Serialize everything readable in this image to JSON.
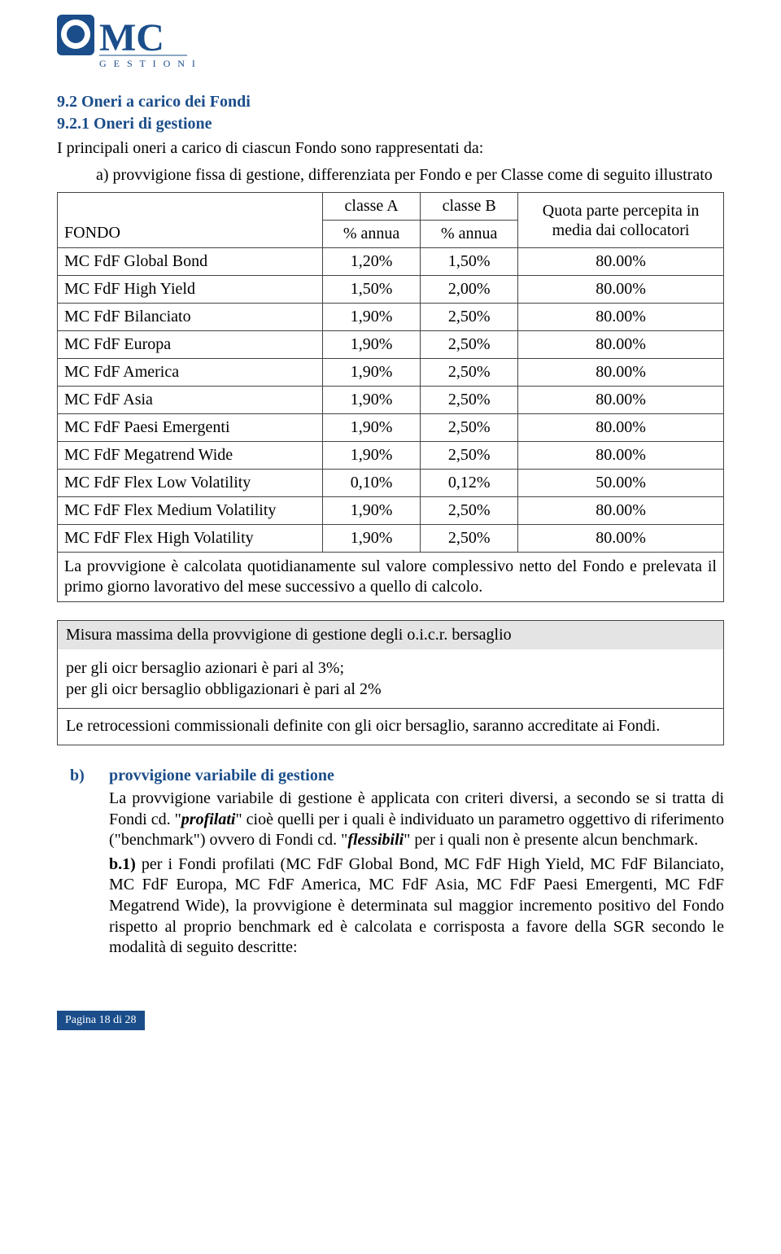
{
  "logo": {
    "brand_top": "MC",
    "brand_sub": "G E S T I O N I",
    "brand_color": "#1a4d8a"
  },
  "h1": "9.2 Oneri a carico dei Fondi",
  "h2": "9.2.1 Oneri di gestione",
  "intro_line1": "I principali oneri a carico di ciascun Fondo sono rappresentati da:",
  "intro_a": "a) provvigione fissa di gestione, differenziata per Fondo e per Classe come di seguito illustrato",
  "table": {
    "header": {
      "fondo": "FONDO",
      "colA_top": "classe A",
      "colA_sub": "% annua",
      "colB_top": "classe B",
      "colB_sub": "% annua",
      "quota_l1": "Quota parte percepita in",
      "quota_l2": "media dai collocatori"
    },
    "rows": [
      {
        "name": "MC FdF Global Bond",
        "a": "1,20%",
        "b": "1,50%",
        "q": "80.00%"
      },
      {
        "name": "MC FdF High Yield",
        "a": "1,50%",
        "b": "2,00%",
        "q": "80.00%"
      },
      {
        "name": "MC FdF Bilanciato",
        "a": "1,90%",
        "b": "2,50%",
        "q": "80.00%"
      },
      {
        "name": "MC FdF Europa",
        "a": "1,90%",
        "b": "2,50%",
        "q": "80.00%"
      },
      {
        "name": "MC FdF America",
        "a": "1,90%",
        "b": "2,50%",
        "q": "80.00%"
      },
      {
        "name": "MC FdF Asia",
        "a": "1,90%",
        "b": "2,50%",
        "q": "80.00%"
      },
      {
        "name": "MC FdF Paesi Emergenti",
        "a": "1,90%",
        "b": "2,50%",
        "q": "80.00%"
      },
      {
        "name": "MC FdF Megatrend Wide",
        "a": "1,90%",
        "b": "2,50%",
        "q": "80.00%"
      },
      {
        "name": "MC FdF Flex Low Volatility",
        "a": "0,10%",
        "b": "0,12%",
        "q": "50.00%"
      },
      {
        "name": "MC FdF Flex Medium Volatility",
        "a": "1,90%",
        "b": "2,50%",
        "q": "80.00%"
      },
      {
        "name": "MC FdF Flex High Volatility",
        "a": "1,90%",
        "b": "2,50%",
        "q": "80.00%"
      }
    ],
    "note": "La provvigione è calcolata quotidianamente sul valore complessivo netto del Fondo e prelevata il primo giorno lavorativo del mese successivo a quello di calcolo."
  },
  "box": {
    "header": "Misura massima della provvigione di gestione degli o.i.c.r. bersaglio",
    "line1": "per gli oicr bersaglio azionari è pari al 3%;",
    "line2": "per gli oicr bersaglio obbligazionari è pari al 2%",
    "line3": "Le retrocessioni commissionali definite con gli oicr bersaglio, saranno accreditate ai Fondi."
  },
  "b_sect": {
    "label": "b)",
    "title": "provvigione variabile di gestione",
    "p1_a": "La provvigione variabile di gestione è applicata con criteri diversi, a secondo se si tratta di Fondi cd. \"",
    "p1_b": "profilati",
    "p1_c": "\" cioè quelli per i quali è individuato un parametro oggettivo di riferimento (\"benchmark\") ovvero di Fondi cd. \"",
    "p1_d": "flessibili",
    "p1_e": "\" per i quali non è presente alcun benchmark.",
    "p2_a": "b.1)",
    "p2_b": " per i Fondi profilati (MC FdF Global Bond, MC FdF High Yield, MC FdF Bilanciato, MC FdF Europa, MC FdF America, MC FdF Asia, MC FdF Paesi Emergenti, MC FdF Megatrend Wide), la provvigione è determinata sul maggior incremento positivo del Fondo rispetto al proprio benchmark ed è calcolata e corrisposta a favore della SGR secondo le modalità di seguito descritte:"
  },
  "footer": "Pagina 18 di 28",
  "colors": {
    "blue": "#1a4d8a",
    "gray": "#e4e4e4",
    "border": "#444444",
    "text": "#000000"
  }
}
